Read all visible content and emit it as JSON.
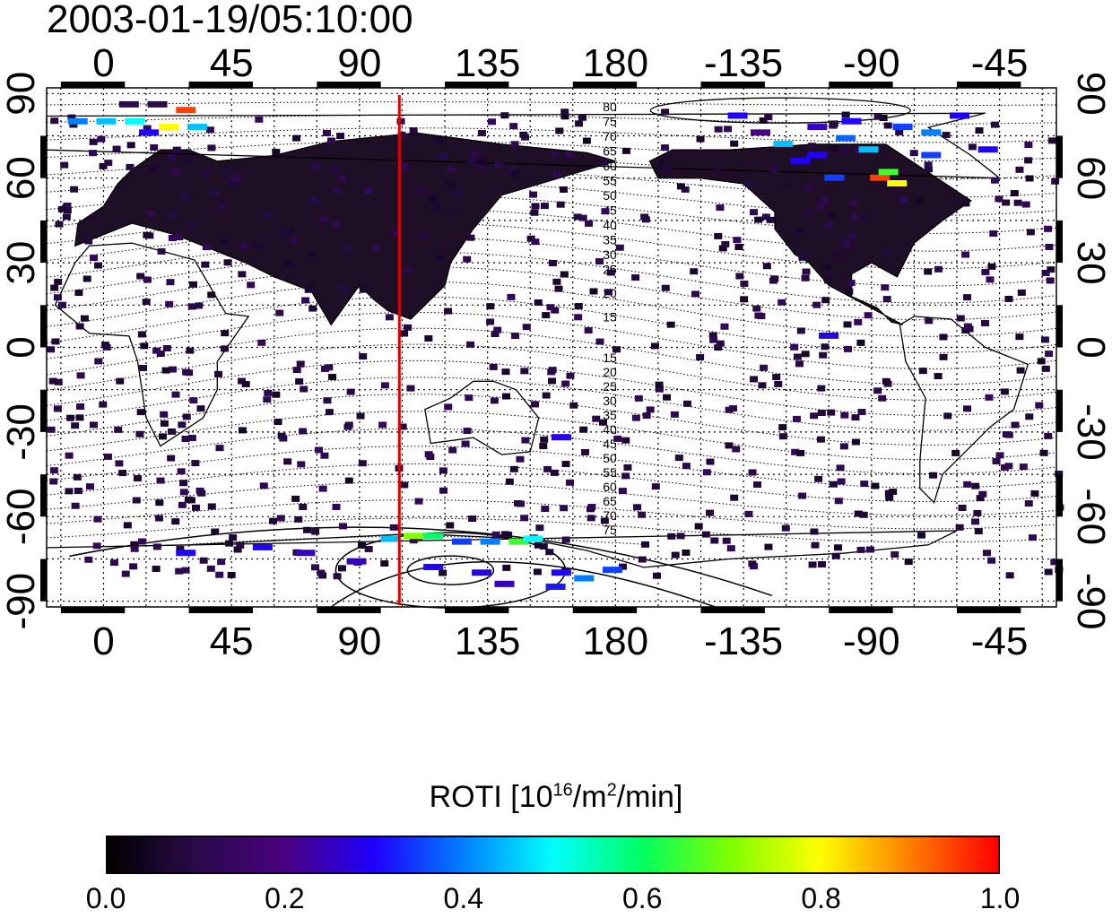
{
  "title": "2003-01-19/05:10:00",
  "map": {
    "lon_labels": [
      "0",
      "45",
      "90",
      "135",
      "180",
      "-135",
      "-90",
      "-45"
    ],
    "lon_values": [
      0,
      45,
      90,
      135,
      180,
      -135,
      -90,
      -45
    ],
    "lat_labels": [
      "90",
      "60",
      "30",
      "0",
      "-30",
      "-60",
      "-90"
    ],
    "lat_values": [
      90,
      60,
      30,
      0,
      -30,
      -60,
      -90
    ],
    "lon_range": [
      -20,
      335
    ],
    "lat_range": [
      -92,
      92
    ],
    "marker_lon": 104,
    "marker_color": "#e00000",
    "contour_labels_north": [
      "80",
      "75",
      "70",
      "65",
      "60",
      "55",
      "50",
      "45",
      "40",
      "35",
      "30",
      "25",
      "20",
      "15"
    ],
    "contour_labels_south": [
      "15",
      "20",
      "25",
      "30",
      "35",
      "40",
      "45",
      "50",
      "55",
      "60",
      "65",
      "70",
      "75"
    ],
    "background_color": "#ffffff",
    "grid_style": "dotted"
  },
  "colorbar": {
    "title_prefix": "ROTI  [10",
    "title_sup1": "16",
    "title_mid": "/m",
    "title_sup2": "2",
    "title_suffix": "/min]",
    "ticks": [
      "0.0",
      "0.2",
      "0.4",
      "0.6",
      "0.8",
      "1.0"
    ],
    "tick_values": [
      0.0,
      0.2,
      0.4,
      0.6,
      0.8,
      1.0
    ],
    "colormap": [
      "#000000",
      "#2a0a4a",
      "#4a0080",
      "#2000ff",
      "#0080ff",
      "#00ffff",
      "#00ff60",
      "#80ff00",
      "#ffff00",
      "#ff8000",
      "#ff0000"
    ]
  },
  "data_cells": [
    {
      "lon": 8,
      "lat": 86,
      "v": 0.1
    },
    {
      "lon": 18,
      "lat": 86,
      "v": 0.1
    },
    {
      "lon": 28,
      "lat": 84,
      "v": 0.95
    },
    {
      "lon": -10,
      "lat": 80,
      "v": 0.4
    },
    {
      "lon": 0,
      "lat": 80,
      "v": 0.45
    },
    {
      "lon": 10,
      "lat": 80,
      "v": 0.5
    },
    {
      "lon": 22,
      "lat": 78,
      "v": 0.8
    },
    {
      "lon": 32,
      "lat": 78,
      "v": 0.45
    },
    {
      "lon": 15,
      "lat": 76,
      "v": 0.3
    },
    {
      "lon": -180,
      "lat": 0,
      "v": 0
    },
    {
      "lon": 250,
      "lat": 78,
      "v": 0.25
    },
    {
      "lon": 262,
      "lat": 80,
      "v": 0.3
    },
    {
      "lon": 280,
      "lat": 78,
      "v": 0.35
    },
    {
      "lon": 290,
      "lat": 76,
      "v": 0.4
    },
    {
      "lon": 300,
      "lat": 82,
      "v": 0.3
    },
    {
      "lon": 260,
      "lat": 74,
      "v": 0.38
    },
    {
      "lon": 268,
      "lat": 70,
      "v": 0.45
    },
    {
      "lon": 250,
      "lat": 68,
      "v": 0.3
    },
    {
      "lon": 272,
      "lat": 60,
      "v": 0.95
    },
    {
      "lon": 275,
      "lat": 62,
      "v": 0.65
    },
    {
      "lon": 278,
      "lat": 58,
      "v": 0.8
    },
    {
      "lon": 256,
      "lat": 60,
      "v": 0.35
    },
    {
      "lon": 222,
      "lat": 82,
      "v": 0.3
    },
    {
      "lon": 230,
      "lat": 76,
      "v": 0.2
    },
    {
      "lon": 238,
      "lat": 72,
      "v": 0.45
    },
    {
      "lon": 244,
      "lat": 66,
      "v": 0.3
    },
    {
      "lon": 290,
      "lat": 68,
      "v": 0.35
    },
    {
      "lon": 310,
      "lat": 70,
      "v": 0.3
    },
    {
      "lon": 254,
      "lat": 4,
      "v": 0.28
    },
    {
      "lon": 160,
      "lat": -32,
      "v": 0.28
    },
    {
      "lon": 100,
      "lat": -68,
      "v": 0.45
    },
    {
      "lon": 108,
      "lat": -67,
      "v": 0.7
    },
    {
      "lon": 115,
      "lat": -67,
      "v": 0.6
    },
    {
      "lon": 125,
      "lat": -69,
      "v": 0.35
    },
    {
      "lon": 135,
      "lat": -69,
      "v": 0.4
    },
    {
      "lon": 145,
      "lat": -69,
      "v": 0.65
    },
    {
      "lon": 150,
      "lat": -68,
      "v": 0.5
    },
    {
      "lon": 70,
      "lat": -73,
      "v": 0.25
    },
    {
      "lon": 55,
      "lat": -71,
      "v": 0.3
    },
    {
      "lon": 115,
      "lat": -78,
      "v": 0.3
    },
    {
      "lon": 132,
      "lat": -80,
      "v": 0.28
    },
    {
      "lon": 140,
      "lat": -84,
      "v": 0.25
    },
    {
      "lon": 160,
      "lat": -80,
      "v": 0.3
    },
    {
      "lon": 168,
      "lat": -82,
      "v": 0.4
    },
    {
      "lon": 178,
      "lat": -79,
      "v": 0.35
    },
    {
      "lon": 158,
      "lat": -85,
      "v": 0.32
    },
    {
      "lon": 28,
      "lat": -73,
      "v": 0.3
    },
    {
      "lon": 88,
      "lat": -76,
      "v": 0.25
    }
  ]
}
